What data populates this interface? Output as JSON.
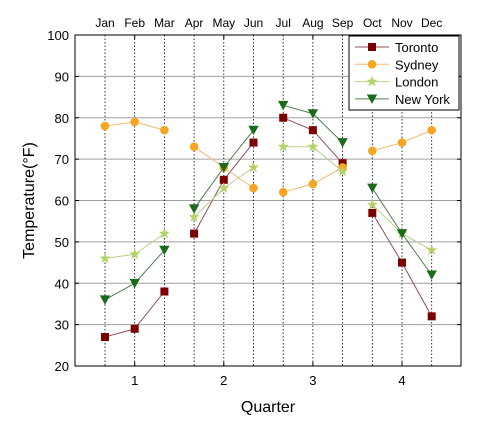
{
  "chart_data": {
    "type": "line",
    "xlabel": "Quarter",
    "ylabel": "Temperature(°F)",
    "ylim": [
      20,
      100
    ],
    "yticks": [
      "20",
      "30",
      "40",
      "50",
      "60",
      "70",
      "80",
      "90",
      "100"
    ],
    "quarter_ticks": [
      "1",
      "2",
      "3",
      "4"
    ],
    "months": [
      "Jan",
      "Feb",
      "Mar",
      "Apr",
      "May",
      "Jun",
      "Jul",
      "Aug",
      "Sep",
      "Oct",
      "Nov",
      "Dec"
    ],
    "grid": true,
    "legend_position": "top-right",
    "series": [
      {
        "name": "Toronto",
        "marker": "square",
        "color": "#7b0000",
        "line_color": "#8a5060",
        "values": [
          27,
          29,
          38,
          52,
          65,
          74,
          80,
          77,
          69,
          57,
          45,
          32
        ]
      },
      {
        "name": "Sydney",
        "marker": "circle",
        "color": "#f5a623",
        "line_color": "#f2b870",
        "values": [
          78,
          79,
          77,
          73,
          68,
          63,
          62,
          64,
          68,
          72,
          74,
          77
        ]
      },
      {
        "name": "London",
        "marker": "star",
        "color": "#b5d26a",
        "line_color": "#b9d08a",
        "values": [
          46,
          47,
          52,
          56,
          63,
          68,
          73,
          73,
          67,
          59,
          52,
          48
        ]
      },
      {
        "name": "New York",
        "marker": "triangle-down",
        "color": "#1a6b1a",
        "line_color": "#4f7f4f",
        "values": [
          36,
          40,
          48,
          58,
          68,
          77,
          83,
          81,
          74,
          63,
          52,
          42
        ]
      }
    ]
  }
}
